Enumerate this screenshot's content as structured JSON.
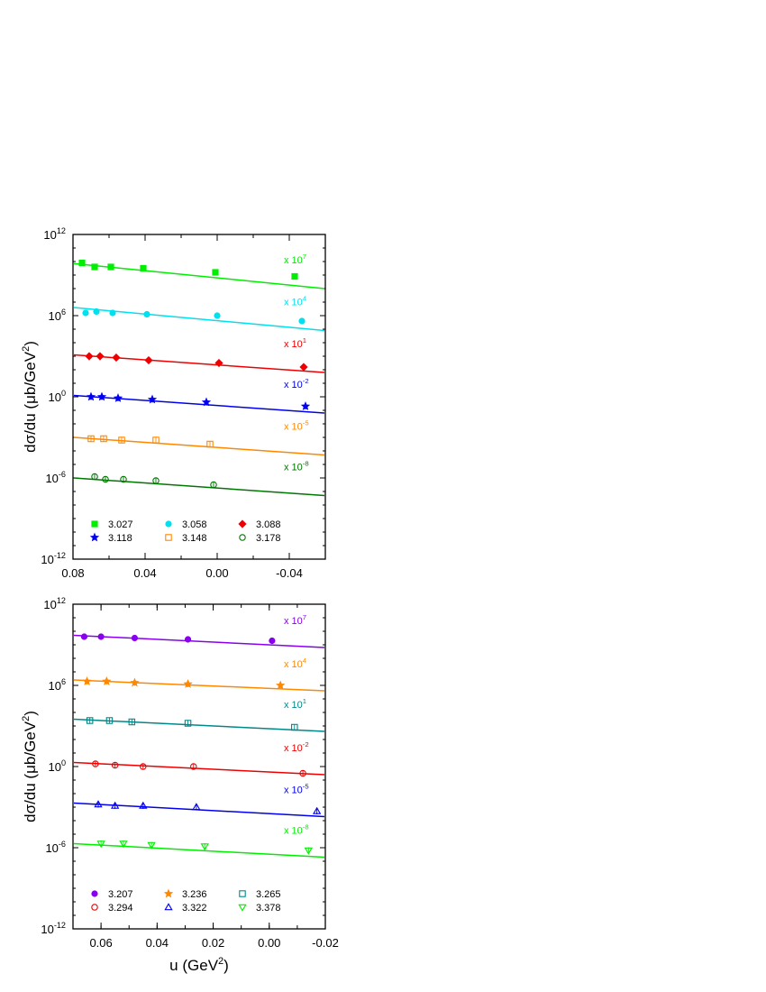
{
  "chart_data": [
    {
      "type": "scatter",
      "title": "",
      "xlabel": "",
      "ylabel": "dσ/du (μb/GeV²)",
      "yscale": "log",
      "xlim": [
        0.08,
        -0.06
      ],
      "ylim_exp": [
        -12,
        12
      ],
      "xticks": [
        "0.08",
        "0.04",
        "0.00",
        "-0.04"
      ],
      "legend_position": "bottom-left",
      "series": [
        {
          "name": "3.027",
          "color": "#00ee00",
          "marker": "square-filled",
          "multiplier_base": "x 10",
          "multiplier_exp": "7",
          "x": [
            0.075,
            0.068,
            0.059,
            0.041,
            0.001,
            -0.043
          ],
          "y_exp": [
            9.9,
            9.6,
            9.6,
            9.5,
            9.2,
            8.9
          ],
          "fit_y_exp": [
            9.85,
            8.0
          ]
        },
        {
          "name": "3.058",
          "color": "#00e0ee",
          "marker": "circle-filled",
          "multiplier_base": "x 10",
          "multiplier_exp": "4",
          "x": [
            0.073,
            0.067,
            0.058,
            0.039,
            0.0,
            -0.047
          ],
          "y_exp": [
            6.2,
            6.3,
            6.2,
            6.1,
            6.0,
            5.6
          ],
          "fit_y_exp": [
            6.6,
            4.9
          ]
        },
        {
          "name": "3.088",
          "color": "#ee0000",
          "marker": "diamond-filled",
          "multiplier_base": "x 10",
          "multiplier_exp": "1",
          "x": [
            0.071,
            0.065,
            0.056,
            0.038,
            -0.001,
            -0.048
          ],
          "y_exp": [
            3.0,
            3.0,
            2.9,
            2.7,
            2.5,
            2.2
          ],
          "fit_y_exp": [
            3.1,
            1.8
          ]
        },
        {
          "name": "3.118",
          "color": "#0000ee",
          "marker": "star-filled",
          "multiplier_base": "x 10",
          "multiplier_exp": "-2",
          "x": [
            0.07,
            0.064,
            0.055,
            0.036,
            0.006,
            -0.049
          ],
          "y_exp": [
            0.0,
            0.0,
            -0.1,
            -0.2,
            -0.4,
            -0.7
          ],
          "fit_y_exp": [
            0.1,
            -1.2
          ]
        },
        {
          "name": "3.148",
          "color": "#ff8800",
          "marker": "square-open",
          "multiplier_base": "x 10",
          "multiplier_exp": "-5",
          "x": [
            0.07,
            0.063,
            0.053,
            0.034,
            0.004
          ],
          "y_exp": [
            -3.1,
            -3.1,
            -3.2,
            -3.2,
            -3.5
          ],
          "fit_y_exp": [
            -3.0,
            -4.3
          ]
        },
        {
          "name": "3.178",
          "color": "#007700",
          "marker": "circle-open",
          "multiplier_base": "x 10",
          "multiplier_exp": "-8",
          "x": [
            0.068,
            0.062,
            0.052,
            0.034,
            0.002
          ],
          "y_exp": [
            -5.9,
            -6.1,
            -6.1,
            -6.2,
            -6.5
          ],
          "fit_y_exp": [
            -6.0,
            -7.3
          ]
        }
      ]
    },
    {
      "type": "scatter",
      "title": "",
      "xlabel": "u (GeV²)",
      "ylabel": "dσ/du (μb/GeV²)",
      "yscale": "log",
      "xlim": [
        0.07,
        -0.02
      ],
      "ylim_exp": [
        -12,
        12
      ],
      "xticks": [
        "0.06",
        "0.04",
        "0.02",
        "0.00",
        "-0.02"
      ],
      "legend_position": "bottom-left",
      "series": [
        {
          "name": "3.207",
          "color": "#8800ee",
          "marker": "circle-filled",
          "multiplier_base": "x 10",
          "multiplier_exp": "7",
          "x": [
            0.066,
            0.06,
            0.048,
            0.029,
            -0.001
          ],
          "y_exp": [
            9.6,
            9.6,
            9.5,
            9.4,
            9.3
          ],
          "fit_y_exp": [
            9.7,
            8.8
          ]
        },
        {
          "name": "3.236",
          "color": "#ff8800",
          "marker": "star-filled",
          "multiplier_base": "x 10",
          "multiplier_exp": "4",
          "x": [
            0.065,
            0.058,
            0.048,
            0.029,
            -0.004
          ],
          "y_exp": [
            6.3,
            6.3,
            6.2,
            6.1,
            6.0
          ],
          "fit_y_exp": [
            6.4,
            5.6
          ]
        },
        {
          "name": "3.265",
          "color": "#008888",
          "marker": "square-open",
          "multiplier_base": "x 10",
          "multiplier_exp": "1",
          "x": [
            0.064,
            0.057,
            0.049,
            0.029,
            -0.009
          ],
          "y_exp": [
            3.4,
            3.4,
            3.3,
            3.2,
            2.9
          ],
          "fit_y_exp": [
            3.5,
            2.6
          ]
        },
        {
          "name": "3.294",
          "color": "#ee0000",
          "marker": "circle-open",
          "multiplier_base": "x 10",
          "multiplier_exp": "-2",
          "x": [
            0.062,
            0.055,
            0.045,
            0.027,
            -0.012
          ],
          "y_exp": [
            0.2,
            0.1,
            0.0,
            0.0,
            -0.5
          ],
          "fit_y_exp": [
            0.3,
            -0.6
          ]
        },
        {
          "name": "3.322",
          "color": "#0000ee",
          "marker": "triangle-up-open",
          "multiplier_base": "x 10",
          "multiplier_exp": "-5",
          "x": [
            0.061,
            0.055,
            0.045,
            0.026,
            -0.017
          ],
          "y_exp": [
            -2.8,
            -2.9,
            -2.9,
            -3.0,
            -3.3
          ],
          "fit_y_exp": [
            -2.7,
            -3.7
          ]
        },
        {
          "name": "3.378",
          "color": "#00ee00",
          "marker": "triangle-down-open",
          "multiplier_base": "x 10",
          "multiplier_exp": "-8",
          "x": [
            0.06,
            0.052,
            0.042,
            0.023,
            -0.014
          ],
          "y_exp": [
            -5.7,
            -5.7,
            -5.8,
            -5.9,
            -6.2
          ],
          "fit_y_exp": [
            -5.7,
            -6.7
          ]
        }
      ]
    }
  ]
}
